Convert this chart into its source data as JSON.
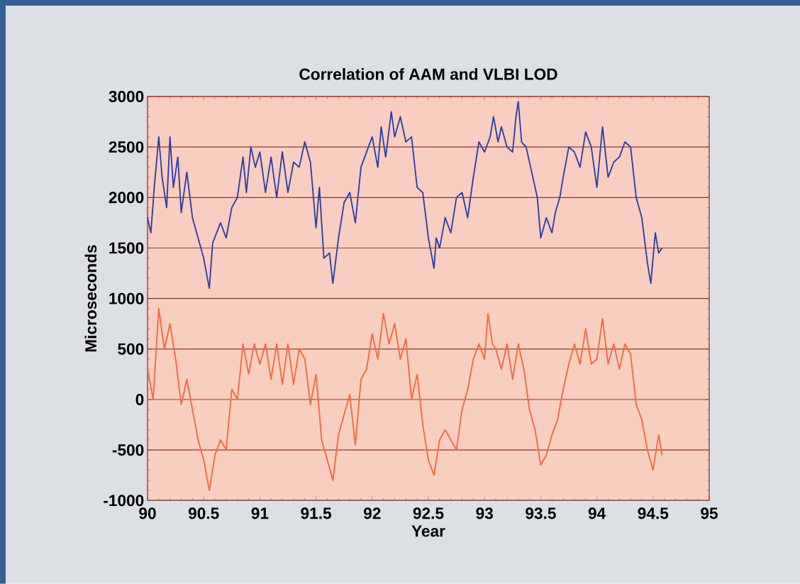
{
  "chart_data": {
    "type": "line",
    "title": "Correlation of AAM and VLBI LOD",
    "xlabel": "Year",
    "ylabel": "Microseconds",
    "xlim": [
      90,
      95
    ],
    "xticks": [
      90,
      90.5,
      91,
      91.5,
      92,
      92.5,
      93,
      93.5,
      94,
      94.5,
      95
    ],
    "ylim": [
      -1000,
      3000
    ],
    "yticks": [
      -1000,
      -500,
      0,
      500,
      1000,
      1500,
      2000,
      2500,
      3000
    ],
    "grid": "y",
    "marker": "none",
    "line_style": "solid",
    "series": [
      {
        "color": "#2b3fa6",
        "x": [
          90.0,
          90.03,
          90.06,
          90.1,
          90.13,
          90.17,
          90.2,
          90.23,
          90.27,
          90.3,
          90.35,
          90.4,
          90.45,
          90.5,
          90.55,
          90.58,
          90.65,
          90.7,
          90.75,
          90.8,
          90.85,
          90.88,
          90.92,
          90.96,
          91.0,
          91.05,
          91.1,
          91.15,
          91.2,
          91.25,
          91.3,
          91.35,
          91.4,
          91.45,
          91.5,
          91.53,
          91.57,
          91.62,
          91.65,
          91.7,
          91.75,
          91.8,
          91.85,
          91.9,
          91.95,
          92.0,
          92.05,
          92.08,
          92.12,
          92.17,
          92.2,
          92.25,
          92.3,
          92.35,
          92.4,
          92.45,
          92.5,
          92.55,
          92.57,
          92.6,
          92.65,
          92.7,
          92.75,
          92.8,
          92.85,
          92.9,
          92.95,
          93.0,
          93.05,
          93.08,
          93.12,
          93.15,
          93.2,
          93.25,
          93.28,
          93.3,
          93.33,
          93.37,
          93.43,
          93.47,
          93.5,
          93.55,
          93.6,
          93.63,
          93.67,
          93.7,
          93.75,
          93.8,
          93.85,
          93.9,
          93.95,
          94.0,
          94.05,
          94.1,
          94.15,
          94.2,
          94.25,
          94.3,
          94.35,
          94.4,
          94.45,
          94.48,
          94.52,
          94.55,
          94.58
        ],
        "values": [
          1800,
          1650,
          2100,
          2600,
          2200,
          1900,
          2600,
          2100,
          2400,
          1850,
          2250,
          1800,
          1600,
          1400,
          1100,
          1550,
          1750,
          1600,
          1900,
          2000,
          2400,
          2050,
          2500,
          2300,
          2450,
          2050,
          2400,
          2000,
          2450,
          2050,
          2350,
          2300,
          2550,
          2350,
          1700,
          2100,
          1400,
          1450,
          1150,
          1600,
          1950,
          2050,
          1750,
          2300,
          2450,
          2600,
          2300,
          2700,
          2400,
          2850,
          2600,
          2800,
          2550,
          2600,
          2100,
          2050,
          1600,
          1300,
          1600,
          1500,
          1800,
          1650,
          2000,
          2050,
          1800,
          2200,
          2550,
          2450,
          2600,
          2800,
          2550,
          2700,
          2500,
          2450,
          2800,
          2950,
          2550,
          2500,
          2200,
          2000,
          1600,
          1800,
          1650,
          1850,
          2000,
          2200,
          2500,
          2450,
          2300,
          2650,
          2500,
          2100,
          2700,
          2200,
          2350,
          2400,
          2550,
          2500,
          2000,
          1800,
          1350,
          1150,
          1650,
          1450,
          1500
        ]
      },
      {
        "color": "#f26a3f",
        "x": [
          90.0,
          90.05,
          90.1,
          90.15,
          90.2,
          90.25,
          90.3,
          90.35,
          90.4,
          90.45,
          90.5,
          90.55,
          90.6,
          90.65,
          90.7,
          90.75,
          90.8,
          90.85,
          90.9,
          90.95,
          91.0,
          91.05,
          91.1,
          91.15,
          91.2,
          91.25,
          91.3,
          91.35,
          91.4,
          91.45,
          91.5,
          91.55,
          91.6,
          91.65,
          91.7,
          91.75,
          91.8,
          91.85,
          91.9,
          91.95,
          92.0,
          92.05,
          92.1,
          92.15,
          92.2,
          92.25,
          92.3,
          92.35,
          92.4,
          92.45,
          92.5,
          92.55,
          92.6,
          92.65,
          92.7,
          92.75,
          92.8,
          92.85,
          92.9,
          92.95,
          93.0,
          93.03,
          93.07,
          93.1,
          93.15,
          93.2,
          93.25,
          93.3,
          93.35,
          93.4,
          93.45,
          93.5,
          93.55,
          93.6,
          93.65,
          93.7,
          93.75,
          93.8,
          93.85,
          93.9,
          93.95,
          94.0,
          94.05,
          94.1,
          94.15,
          94.2,
          94.25,
          94.3,
          94.35,
          94.4,
          94.45,
          94.5,
          94.55,
          94.58
        ],
        "values": [
          300,
          0,
          900,
          500,
          750,
          400,
          -50,
          200,
          -100,
          -400,
          -600,
          -900,
          -550,
          -400,
          -500,
          100,
          0,
          550,
          250,
          550,
          350,
          550,
          200,
          550,
          150,
          550,
          150,
          500,
          400,
          -50,
          250,
          -400,
          -600,
          -800,
          -350,
          -150,
          50,
          -450,
          200,
          300,
          650,
          400,
          850,
          550,
          750,
          400,
          600,
          0,
          250,
          -250,
          -600,
          -750,
          -400,
          -300,
          -400,
          -500,
          -100,
          100,
          400,
          550,
          400,
          850,
          550,
          500,
          300,
          550,
          200,
          550,
          300,
          -100,
          -300,
          -650,
          -550,
          -350,
          -200,
          100,
          350,
          550,
          350,
          700,
          350,
          400,
          800,
          350,
          550,
          300,
          550,
          450,
          -50,
          -200,
          -500,
          -700,
          -350,
          -550
        ]
      }
    ]
  }
}
